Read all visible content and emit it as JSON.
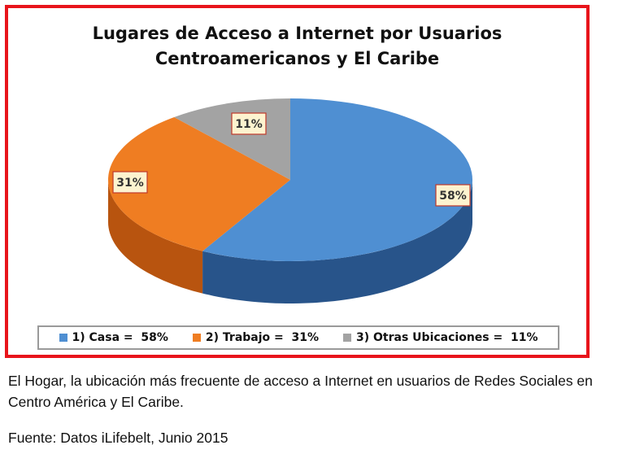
{
  "chart_data": {
    "type": "pie",
    "title_lines": [
      "Lugares de Acceso a Internet por Usuarios",
      "Centroamericanos y El Caribe"
    ],
    "slices": [
      {
        "legend": "1) Casa =  58%",
        "label": "58%",
        "value": 58,
        "color": "#4f8fd2",
        "side": "#28548a"
      },
      {
        "legend": "2) Trabajo =  31%",
        "label": "31%",
        "value": 31,
        "color": "#ef7d22",
        "side": "#b8540f"
      },
      {
        "legend": "3) Otras Ubicaciones =  11%",
        "label": "11%",
        "value": 11,
        "color": "#a3a3a3",
        "side": "#707070"
      }
    ],
    "legend_position": "bottom"
  },
  "caption": "El Hogar, la ubicación más frecuente de acceso a Internet en usuarios de Redes Sociales en Centro América y El Caribe.",
  "source": "Fuente: Datos iLifebelt, Junio 2015",
  "colors": {
    "frame_border": "#e8141b",
    "label_box_fill": "#fdf3cf",
    "label_box_border": "#c0392b"
  }
}
